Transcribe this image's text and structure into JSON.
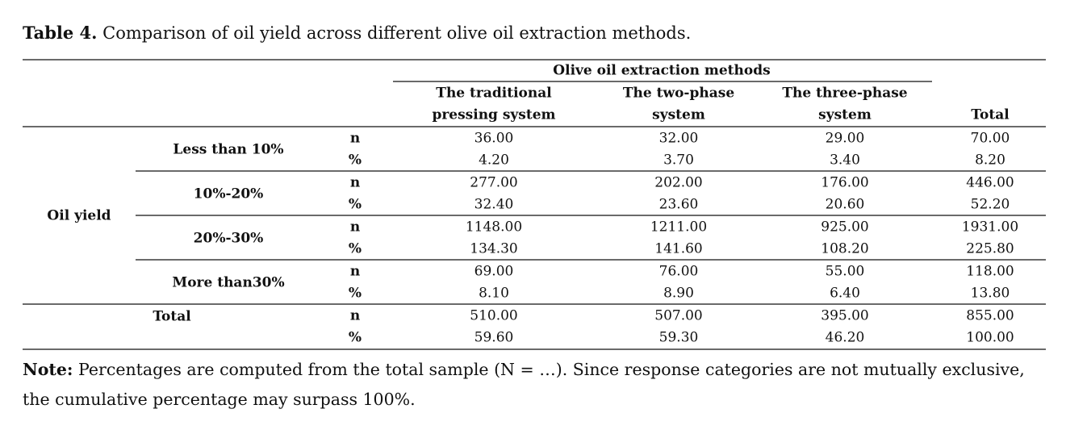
{
  "caption": {
    "label": "Table 4.",
    "text": "Comparison of oil yield across different olive oil extraction methods."
  },
  "table": {
    "group_header": "Olive oil extraction methods",
    "columns": [
      [
        "The traditional",
        "pressing system"
      ],
      [
        "The two-phase",
        "system"
      ],
      [
        "The three-phase",
        "system"
      ]
    ],
    "total_header": "Total",
    "row_group": "Oil yield",
    "n_label": "n",
    "pct_label": "%",
    "rows": [
      {
        "label": "Less than 10%",
        "n": [
          "36.00",
          "32.00",
          "29.00",
          "70.00"
        ],
        "pct": [
          "4.20",
          "3.70",
          "3.40",
          "8.20"
        ]
      },
      {
        "label": "10%-20%",
        "n": [
          "277.00",
          "202.00",
          "176.00",
          "446.00"
        ],
        "pct": [
          "32.40",
          "23.60",
          "20.60",
          "52.20"
        ]
      },
      {
        "label": "20%-30%",
        "n": [
          "1148.00",
          "1211.00",
          "925.00",
          "1931.00"
        ],
        "pct": [
          "134.30",
          "141.60",
          "108.20",
          "225.80"
        ]
      },
      {
        "label": "More than30%",
        "n": [
          "69.00",
          "76.00",
          "55.00",
          "118.00"
        ],
        "pct": [
          "8.10",
          "8.90",
          "6.40",
          "13.80"
        ]
      }
    ],
    "total_row": {
      "label": "Total",
      "n": [
        "510.00",
        "507.00",
        "395.00",
        "855.00"
      ],
      "pct": [
        "59.60",
        "59.30",
        "46.20",
        "100.00"
      ]
    }
  },
  "note": {
    "label": "Note:",
    "text": "Percentages are computed from the total sample (N = …). Since response categories are not mutually exclusive, the cumulative percentage may surpass 100%."
  }
}
